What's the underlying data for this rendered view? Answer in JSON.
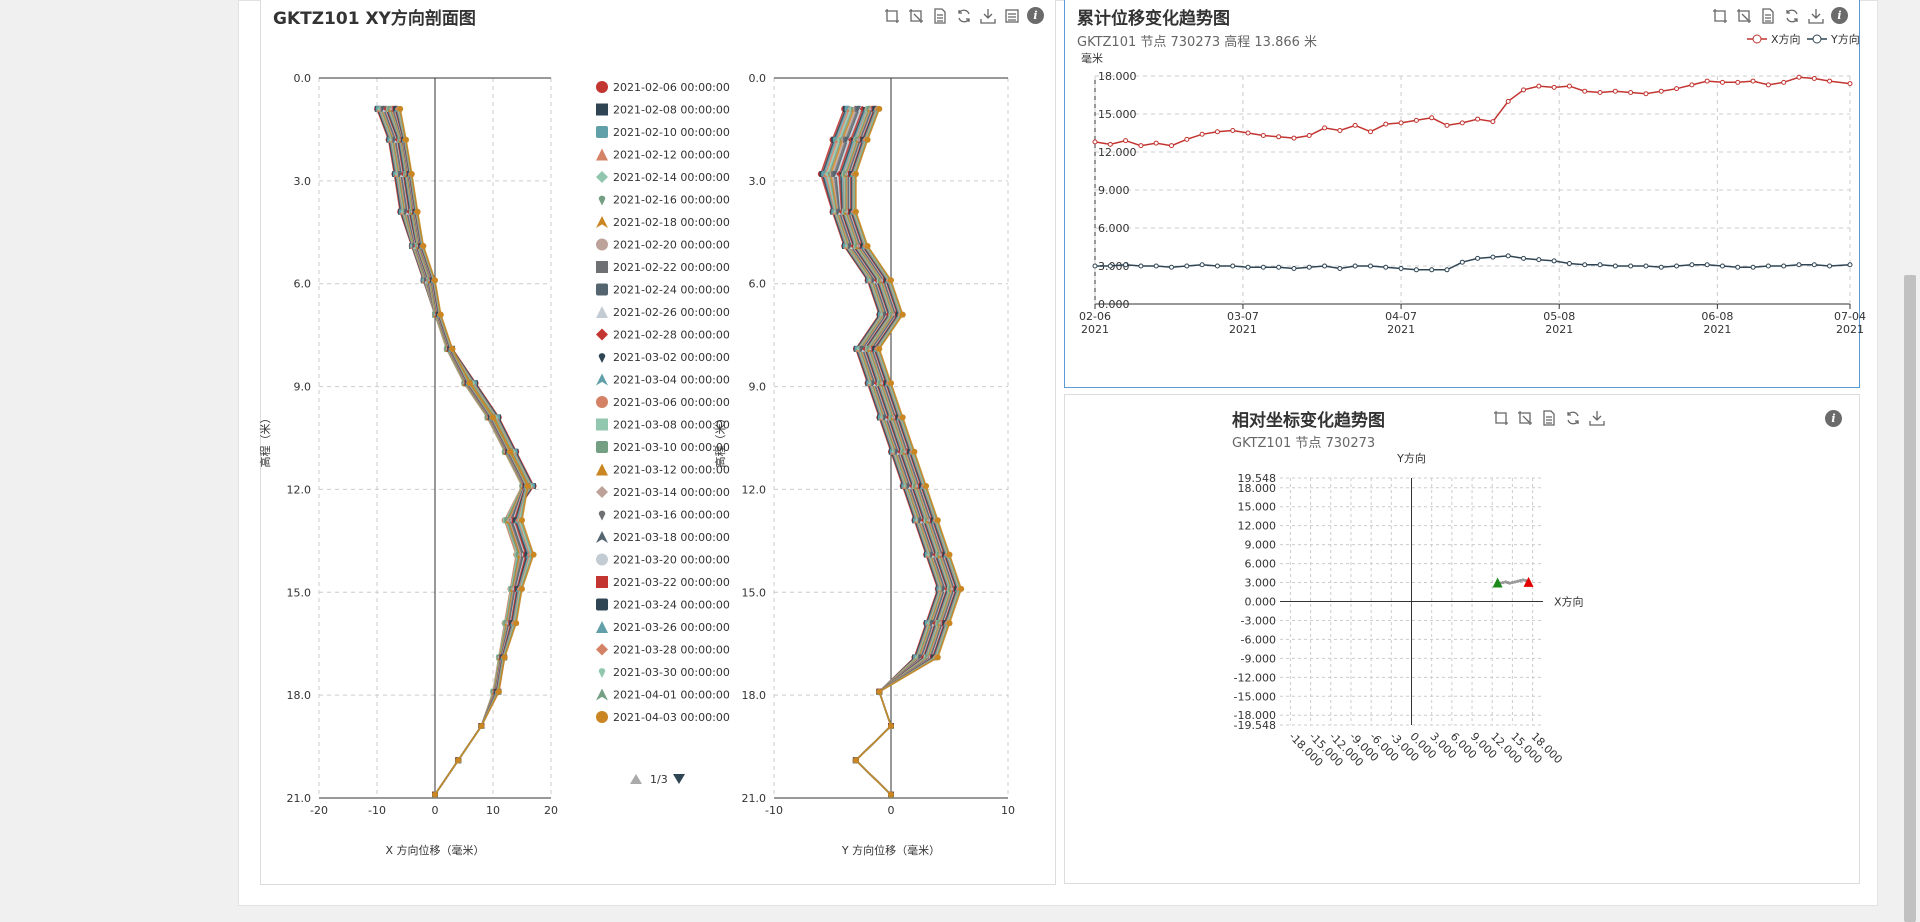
{
  "profile_panel": {
    "title": "GKTZ101 XY方向剖面图",
    "x_axis_label": "X 方向位移（毫米）",
    "y_axis_label_left": "高程（米）",
    "y_axis_label_right": "高程（米）",
    "right_x_axis_label": "Y 方向位移（毫米）",
    "legend_pager": "1/3"
  },
  "trend_panel": {
    "title": "累计位移变化趋势图",
    "subtitle": "GKTZ101 节点 730273 高程 13.866 米",
    "y_unit": "毫米",
    "legend_x": "X方向",
    "legend_y": "Y方向"
  },
  "coord_panel": {
    "title": "相对坐标变化趋势图",
    "subtitle": "GKTZ101 节点 730273",
    "y_axis_name": "Y方向",
    "x_axis_name": "X方向"
  },
  "icons": [
    "zoom-area-icon",
    "zoom-reset-icon",
    "data-view-icon",
    "refresh-icon",
    "download-icon",
    "list-icon",
    "info-icon"
  ],
  "colors": {
    "x_series": "#c23531",
    "y_series": "#2f4554",
    "active_border": "#5b9bd5"
  },
  "chart_data": [
    {
      "type": "line",
      "name": "X direction profile",
      "xlabel": "X 方向位移（毫米）",
      "ylabel": "高程（米）",
      "xlim": [
        -20,
        20
      ],
      "ylim": [
        0,
        21
      ],
      "y_inverted": true,
      "x_ticks": [
        "-20",
        "-10",
        "0",
        "10",
        "20"
      ],
      "y_ticks": [
        "0.0",
        "3.0",
        "6.0",
        "9.0",
        "12.0",
        "15.0",
        "18.0",
        "21.0"
      ],
      "depth": [
        0.9,
        1.8,
        2.8,
        3.9,
        4.9,
        5.9,
        6.9,
        7.9,
        8.9,
        9.9,
        10.9,
        11.9,
        12.9,
        13.9,
        14.9,
        15.9,
        16.9,
        17.9,
        18.9,
        19.9,
        20.9
      ],
      "series_sample": [
        {
          "values": [
            -10,
            -8,
            -7,
            -6,
            -4,
            -2,
            0,
            3,
            7,
            11,
            14,
            17,
            13,
            16,
            14,
            13,
            12,
            11,
            8,
            4,
            0
          ]
        },
        {
          "values": [
            -8,
            -6,
            -5,
            -4,
            -3,
            -1,
            0,
            2,
            5,
            9,
            12,
            15,
            12,
            14,
            13,
            12,
            11,
            10,
            8,
            4,
            0
          ]
        },
        {
          "values": [
            -6,
            -5,
            -4,
            -3,
            -2,
            0,
            1,
            3,
            6,
            10,
            13,
            16,
            15,
            17,
            15,
            14,
            12,
            11,
            8,
            4,
            0
          ]
        }
      ],
      "legend": [
        "2021-02-06 00:00:00",
        "2021-02-08 00:00:00",
        "2021-02-10 00:00:00",
        "2021-02-12 00:00:00",
        "2021-02-14 00:00:00",
        "2021-02-16 00:00:00",
        "2021-02-18 00:00:00",
        "2021-02-20 00:00:00",
        "2021-02-22 00:00:00",
        "2021-02-24 00:00:00",
        "2021-02-26 00:00:00",
        "2021-02-28 00:00:00",
        "2021-03-02 00:00:00",
        "2021-03-04 00:00:00",
        "2021-03-06 00:00:00",
        "2021-03-08 00:00:00",
        "2021-03-10 00:00:00",
        "2021-03-12 00:00:00",
        "2021-03-14 00:00:00",
        "2021-03-16 00:00:00",
        "2021-03-18 00:00:00",
        "2021-03-20 00:00:00",
        "2021-03-22 00:00:00",
        "2021-03-24 00:00:00",
        "2021-03-26 00:00:00",
        "2021-03-28 00:00:00",
        "2021-03-30 00:00:00",
        "2021-04-01 00:00:00",
        "2021-04-03 00:00:00"
      ],
      "legend_colors": [
        "#c23531",
        "#2f4554",
        "#61a0a8",
        "#d48265",
        "#91c7ae",
        "#749f83",
        "#ca8622",
        "#bda29a",
        "#6e7074",
        "#546570",
        "#c4ccd3",
        "#c23531",
        "#2f4554",
        "#61a0a8",
        "#d48265",
        "#91c7ae",
        "#749f83",
        "#ca8622",
        "#bda29a",
        "#6e7074",
        "#546570",
        "#c4ccd3",
        "#c23531",
        "#2f4554",
        "#61a0a8",
        "#d48265",
        "#91c7ae",
        "#749f83",
        "#ca8622"
      ],
      "legend_symbols": [
        "circle",
        "rect",
        "roundRect",
        "triangle",
        "diamond",
        "pin",
        "arrow",
        "circle",
        "rect",
        "roundRect",
        "triangle",
        "diamond",
        "pin",
        "arrow",
        "circle",
        "rect",
        "roundRect",
        "triangle",
        "diamond",
        "pin",
        "arrow",
        "circle",
        "rect",
        "roundRect",
        "triangle",
        "diamond",
        "pin",
        "arrow",
        "circle"
      ]
    },
    {
      "type": "line",
      "name": "Y direction profile",
      "xlabel": "Y 方向位移（毫米）",
      "ylabel": "高程（米）",
      "xlim": [
        -10,
        10
      ],
      "ylim": [
        0,
        21
      ],
      "y_inverted": true,
      "x_ticks": [
        "-10",
        "0",
        "10"
      ],
      "y_ticks": [
        "0.0",
        "3.0",
        "6.0",
        "9.0",
        "12.0",
        "15.0",
        "18.0",
        "21.0"
      ],
      "depth": [
        0.9,
        1.8,
        2.8,
        3.9,
        4.9,
        5.9,
        6.9,
        7.9,
        8.9,
        9.9,
        10.9,
        11.9,
        12.9,
        13.9,
        14.9,
        15.9,
        16.9,
        17.9,
        18.9,
        19.9,
        20.9
      ],
      "series_sample": [
        {
          "values": [
            -4,
            -5,
            -6,
            -5,
            -4,
            -2,
            -1,
            -3,
            -2,
            -1,
            0,
            1,
            2,
            3,
            4,
            3,
            2,
            -1,
            0,
            -3,
            0
          ]
        },
        {
          "values": [
            -2,
            -3,
            -4,
            -4,
            -3,
            -1,
            0,
            -2,
            -1,
            0,
            1,
            2,
            3,
            4,
            5,
            4,
            3,
            -1,
            0,
            -3,
            0
          ]
        },
        {
          "values": [
            -1,
            -2,
            -3,
            -3,
            -2,
            0,
            1,
            -1,
            0,
            1,
            2,
            3,
            4,
            5,
            6,
            5,
            4,
            -1,
            0,
            -3,
            0
          ]
        }
      ]
    },
    {
      "type": "line",
      "name": "Cumulative displacement trend",
      "title": "累计位移变化趋势图",
      "ylabel": "毫米",
      "ylim": [
        0,
        18
      ],
      "y_ticks": [
        "0.000",
        "3.000",
        "6.000",
        "9.000",
        "12.000",
        "15.000",
        "18.000"
      ],
      "x_ticks": [
        [
          "02-06",
          "2021"
        ],
        [
          "03-07",
          "2021"
        ],
        [
          "04-07",
          "2021"
        ],
        [
          "05-08",
          "2021"
        ],
        [
          "06-08",
          "2021"
        ],
        [
          "07-04",
          "2021"
        ]
      ],
      "x_days": [
        0,
        29,
        60,
        91,
        122,
        148
      ],
      "series": [
        {
          "name": "X方向",
          "color": "#c23531",
          "days": [
            0,
            3,
            6,
            9,
            12,
            15,
            18,
            21,
            24,
            27,
            30,
            33,
            36,
            39,
            42,
            45,
            48,
            51,
            54,
            57,
            60,
            63,
            66,
            69,
            72,
            75,
            78,
            81,
            84,
            87,
            90,
            93,
            96,
            99,
            102,
            105,
            108,
            111,
            114,
            117,
            120,
            123,
            126,
            129,
            132,
            135,
            138,
            141,
            144,
            148
          ],
          "values": [
            12.8,
            12.6,
            12.9,
            12.5,
            12.7,
            12.5,
            13.0,
            13.4,
            13.6,
            13.7,
            13.5,
            13.3,
            13.2,
            13.1,
            13.3,
            13.9,
            13.7,
            14.1,
            13.6,
            14.2,
            14.3,
            14.5,
            14.7,
            14.1,
            14.3,
            14.6,
            14.4,
            16.0,
            16.9,
            17.2,
            17.1,
            17.2,
            16.8,
            16.7,
            16.8,
            16.7,
            16.6,
            16.8,
            17.0,
            17.3,
            17.6,
            17.5,
            17.5,
            17.6,
            17.3,
            17.5,
            17.9,
            17.8,
            17.6,
            17.4
          ]
        },
        {
          "name": "Y方向",
          "color": "#2f4554",
          "days": [
            0,
            3,
            6,
            9,
            12,
            15,
            18,
            21,
            24,
            27,
            30,
            33,
            36,
            39,
            42,
            45,
            48,
            51,
            54,
            57,
            60,
            63,
            66,
            69,
            72,
            75,
            78,
            81,
            84,
            87,
            90,
            93,
            96,
            99,
            102,
            105,
            108,
            111,
            114,
            117,
            120,
            123,
            126,
            129,
            132,
            135,
            138,
            141,
            144,
            148
          ],
          "values": [
            3.0,
            3.0,
            3.1,
            3.0,
            3.0,
            2.9,
            3.0,
            3.1,
            3.0,
            3.0,
            2.9,
            2.9,
            2.9,
            2.8,
            2.9,
            3.0,
            2.8,
            3.0,
            3.0,
            2.9,
            2.8,
            2.7,
            2.7,
            2.7,
            3.3,
            3.6,
            3.7,
            3.8,
            3.6,
            3.5,
            3.4,
            3.2,
            3.1,
            3.1,
            3.0,
            3.0,
            3.0,
            2.9,
            3.0,
            3.1,
            3.1,
            3.0,
            2.9,
            2.9,
            3.0,
            3.0,
            3.1,
            3.1,
            3.0,
            3.1
          ]
        }
      ]
    },
    {
      "type": "scatter",
      "name": "Relative coordinate trend",
      "title": "相对坐标变化趋势图",
      "xlabel": "X方向",
      "ylabel": "Y方向",
      "xlim": [
        -19.548,
        19.548
      ],
      "ylim": [
        -19.548,
        19.548
      ],
      "x_ticks": [
        "-18.000",
        "-15.000",
        "-12.000",
        "-9.000",
        "-6.000",
        "-3.000",
        "0.000",
        "3.000",
        "6.000",
        "9.000",
        "12.000",
        "15.000",
        "18.000"
      ],
      "y_ticks": [
        "19.548",
        "18.000",
        "15.000",
        "12.000",
        "9.000",
        "6.000",
        "3.000",
        "0.000",
        "-3.000",
        "-6.000",
        "-9.000",
        "-12.000",
        "-15.000",
        "-18.000",
        "-19.548"
      ],
      "points": [
        [
          12.8,
          3.0
        ],
        [
          13.2,
          2.9
        ],
        [
          13.6,
          3.0
        ],
        [
          14.0,
          3.1
        ],
        [
          14.3,
          3.0
        ],
        [
          14.6,
          2.9
        ],
        [
          15.0,
          3.0
        ],
        [
          15.4,
          3.1
        ],
        [
          15.8,
          3.2
        ],
        [
          16.2,
          3.3
        ],
        [
          16.6,
          3.4
        ],
        [
          17.0,
          3.3
        ],
        [
          17.4,
          3.1
        ]
      ],
      "start": [
        12.8,
        3.0
      ],
      "end": [
        17.4,
        3.1
      ],
      "start_color": "#1a8a1a",
      "end_color": "#e00000"
    }
  ]
}
